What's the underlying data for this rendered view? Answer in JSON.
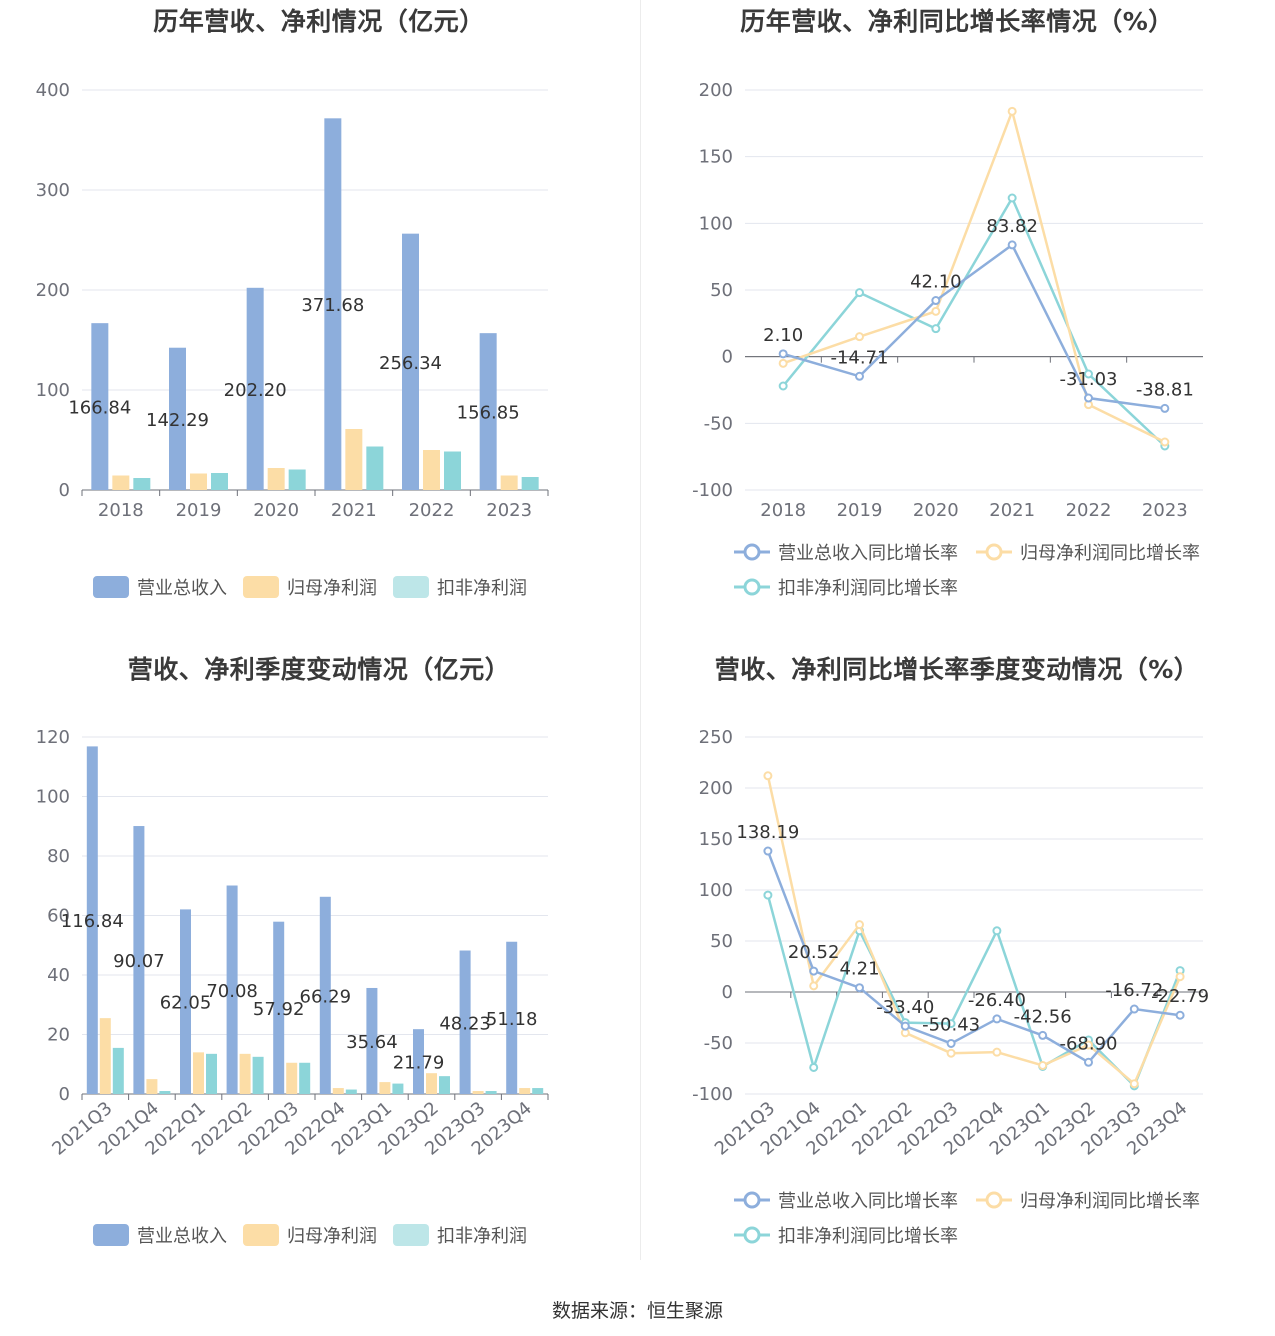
{
  "footer": {
    "source_label": "数据来源：恒生聚源"
  },
  "colors": {
    "revenue": "#8DAEDC",
    "parent_profit": "#FCDDA6",
    "deducted_profit": "#8CD5D9"
  },
  "chart_data": [
    {
      "id": "annual-values",
      "type": "bar",
      "title": "历年营收、净利情况（亿元）",
      "categories": [
        "2018",
        "2019",
        "2020",
        "2021",
        "2022",
        "2023"
      ],
      "ylim": [
        0,
        400
      ],
      "yticks": [
        0,
        100,
        200,
        300,
        400
      ],
      "label_series": 0,
      "series": [
        {
          "name": "营业总收入",
          "color": "#8DAEDC",
          "values": [
            166.84,
            142.29,
            202.2,
            371.68,
            256.34,
            156.85
          ],
          "labels": [
            "166.84",
            "142.29",
            "202.20",
            "371.68",
            "256.34",
            "156.85"
          ]
        },
        {
          "name": "归母净利润",
          "color": "#FCDDA6",
          "values": [
            14.5,
            16.5,
            22,
            61,
            40,
            14.5
          ]
        },
        {
          "name": "扣非净利润",
          "color": "#BDE6E8",
          "bar_color": "#8CD5D9",
          "values": [
            12,
            17,
            20.5,
            43.5,
            38.5,
            13
          ]
        }
      ]
    },
    {
      "id": "annual-growth",
      "type": "line",
      "title": "历年营收、净利同比增长率情况（%）",
      "categories": [
        "2018",
        "2019",
        "2020",
        "2021",
        "2022",
        "2023"
      ],
      "ylim": [
        -100,
        200
      ],
      "yticks": [
        -100,
        -50,
        0,
        50,
        100,
        150,
        200
      ],
      "label_series": 0,
      "series": [
        {
          "name": "营业总收入同比增长率",
          "color": "#8DAEDC",
          "values": [
            2.1,
            -14.71,
            42.1,
            83.82,
            -31.03,
            -38.81
          ],
          "labels": [
            "2.10",
            "-14.71",
            "42.10",
            "83.82",
            "-31.03",
            "-38.81"
          ]
        },
        {
          "name": "归母净利润同比增长率",
          "color": "#FCDDA6",
          "values": [
            -5,
            15,
            34,
            184,
            -36,
            -64
          ]
        },
        {
          "name": "扣非净利润同比增长率",
          "color": "#8CD5D9",
          "values": [
            -22,
            48,
            21,
            119,
            -13,
            -67
          ]
        }
      ]
    },
    {
      "id": "quarterly-values",
      "type": "bar",
      "title": "营收、净利季度变动情况（亿元）",
      "categories": [
        "2021Q3",
        "2021Q4",
        "2022Q1",
        "2022Q2",
        "2022Q3",
        "2022Q4",
        "2023Q1",
        "2023Q2",
        "2023Q3",
        "2023Q4"
      ],
      "ylim": [
        0,
        120
      ],
      "yticks": [
        0,
        20,
        40,
        60,
        80,
        100,
        120
      ],
      "label_series": 0,
      "series": [
        {
          "name": "营业总收入",
          "color": "#8DAEDC",
          "values": [
            116.84,
            90.07,
            62.05,
            70.08,
            57.92,
            66.29,
            35.64,
            21.79,
            48.23,
            51.18
          ],
          "labels": [
            "116.84",
            "90.07",
            "62.05",
            "70.08",
            "57.92",
            "66.29",
            "35.64",
            "21.79",
            "48.23",
            "51.18"
          ]
        },
        {
          "name": "归母净利润",
          "color": "#FCDDA6",
          "values": [
            25.5,
            5,
            14,
            13.5,
            10.5,
            2,
            4,
            7,
            1,
            2
          ]
        },
        {
          "name": "扣非净利润",
          "color": "#BDE6E8",
          "bar_color": "#8CD5D9",
          "values": [
            15.5,
            1,
            13.5,
            12.5,
            10.5,
            1.5,
            3.5,
            6,
            1,
            2
          ]
        }
      ]
    },
    {
      "id": "quarterly-growth",
      "type": "line",
      "title": "营收、净利同比增长率季度变动情况（%）",
      "categories": [
        "2021Q3",
        "2021Q4",
        "2022Q1",
        "2022Q2",
        "2022Q3",
        "2022Q4",
        "2023Q1",
        "2023Q2",
        "2023Q3",
        "2023Q4"
      ],
      "ylim": [
        -100,
        250
      ],
      "yticks": [
        -100,
        -50,
        0,
        50,
        100,
        150,
        200,
        250
      ],
      "label_series": 0,
      "series": [
        {
          "name": "营业总收入同比增长率",
          "color": "#8DAEDC",
          "values": [
            138.19,
            20.52,
            4.21,
            -33.4,
            -50.43,
            -26.4,
            -42.56,
            -68.9,
            -16.72,
            -22.79
          ],
          "labels": [
            "138.19",
            "20.52",
            "4.21",
            "-33.40",
            "-50.43",
            "-26.40",
            "-42.56",
            "-68.90",
            "-16.72",
            "-22.79"
          ]
        },
        {
          "name": "归母净利润同比增长率",
          "color": "#FCDDA6",
          "values": [
            212,
            6,
            66,
            -40,
            -60,
            -59,
            -72,
            -52,
            -90,
            15
          ]
        },
        {
          "name": "扣非净利润同比增长率",
          "color": "#8CD5D9",
          "values": [
            95,
            -74,
            60,
            -30,
            -31,
            60,
            -73,
            -47,
            -92,
            21
          ]
        }
      ]
    }
  ]
}
